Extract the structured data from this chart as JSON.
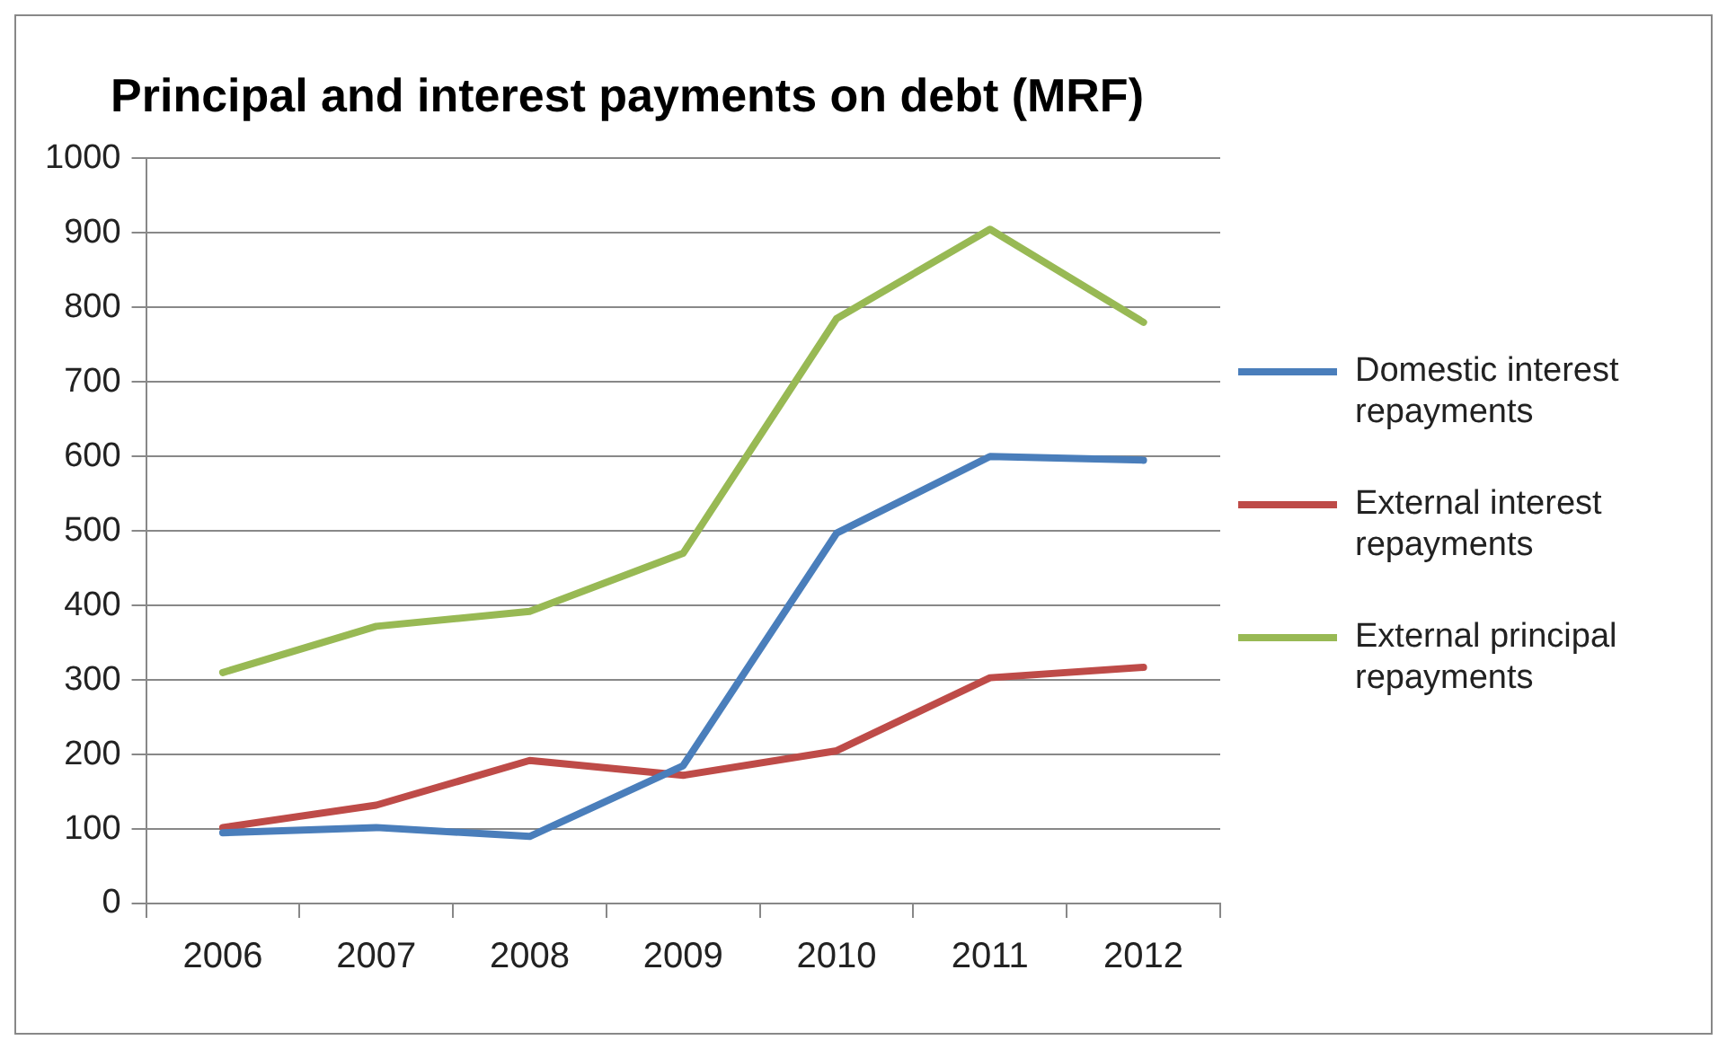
{
  "chart_data": {
    "type": "line",
    "title": "Principal and interest payments on debt (MRF)",
    "categories": [
      "2006",
      "2007",
      "2008",
      "2009",
      "2010",
      "2011",
      "2012"
    ],
    "series": [
      {
        "name": "Domestic interest repayments",
        "color": "#4a7ebb",
        "values": [
          95,
          102,
          90,
          185,
          497,
          600,
          595
        ]
      },
      {
        "name": "External interest repayments",
        "color": "#be4b48",
        "values": [
          102,
          132,
          192,
          172,
          205,
          303,
          317
        ]
      },
      {
        "name": "External principal repayments",
        "color": "#98b954",
        "values": [
          310,
          372,
          392,
          470,
          785,
          905,
          780
        ]
      }
    ],
    "ylim": [
      0,
      1000
    ],
    "yticks": [
      0,
      100,
      200,
      300,
      400,
      500,
      600,
      700,
      800,
      900,
      1000
    ],
    "grid": "y",
    "legend": "right",
    "marker": "none",
    "line_style": "solid"
  }
}
